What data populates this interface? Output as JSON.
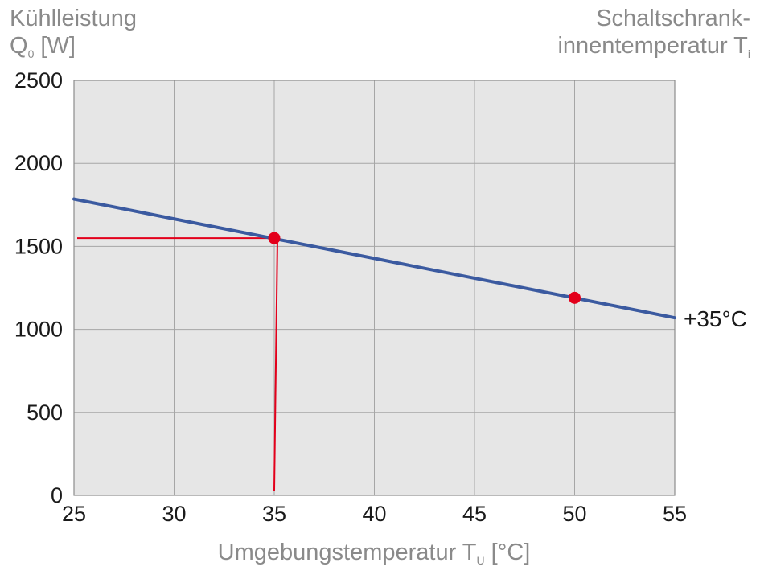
{
  "y_axis_title": {
    "line1": "Kühlleistung",
    "line2_main": "Q",
    "line2_sub": "0",
    "line2_unit": " [W]"
  },
  "y2_axis_title": {
    "line1": "Schaltschrank-",
    "line2_main": "innentemperatur T",
    "line2_sub": "i"
  },
  "x_axis_title": {
    "main": "Umgebungstemperatur T",
    "sub": "U",
    "unit": " [°C]"
  },
  "series_label": "+35°C",
  "colors": {
    "plot_bg": "#e6e6e6",
    "grid": "#a6a6a6",
    "line": "#3b5aa0",
    "marker": "#e3001b",
    "axis_text": "#1a1a1a",
    "title_text": "#8a8a8a"
  },
  "chart_data": {
    "type": "line",
    "x": [
      25,
      55
    ],
    "series": [
      {
        "name": "+35°C",
        "values": [
          1785,
          1070
        ]
      }
    ],
    "markers": [
      {
        "x": 35,
        "y": 1550
      },
      {
        "x": 50,
        "y": 1190
      }
    ],
    "guide_lines": [
      {
        "from": [
          25,
          1550
        ],
        "to": [
          35,
          1550
        ]
      },
      {
        "from": [
          35,
          1550
        ],
        "to": [
          35,
          0
        ]
      }
    ],
    "xlim": [
      25,
      55
    ],
    "ylim": [
      0,
      2500
    ],
    "xticks": [
      25,
      30,
      35,
      40,
      45,
      50,
      55
    ],
    "yticks": [
      0,
      500,
      1000,
      1500,
      2000,
      2500
    ],
    "grid": true
  }
}
